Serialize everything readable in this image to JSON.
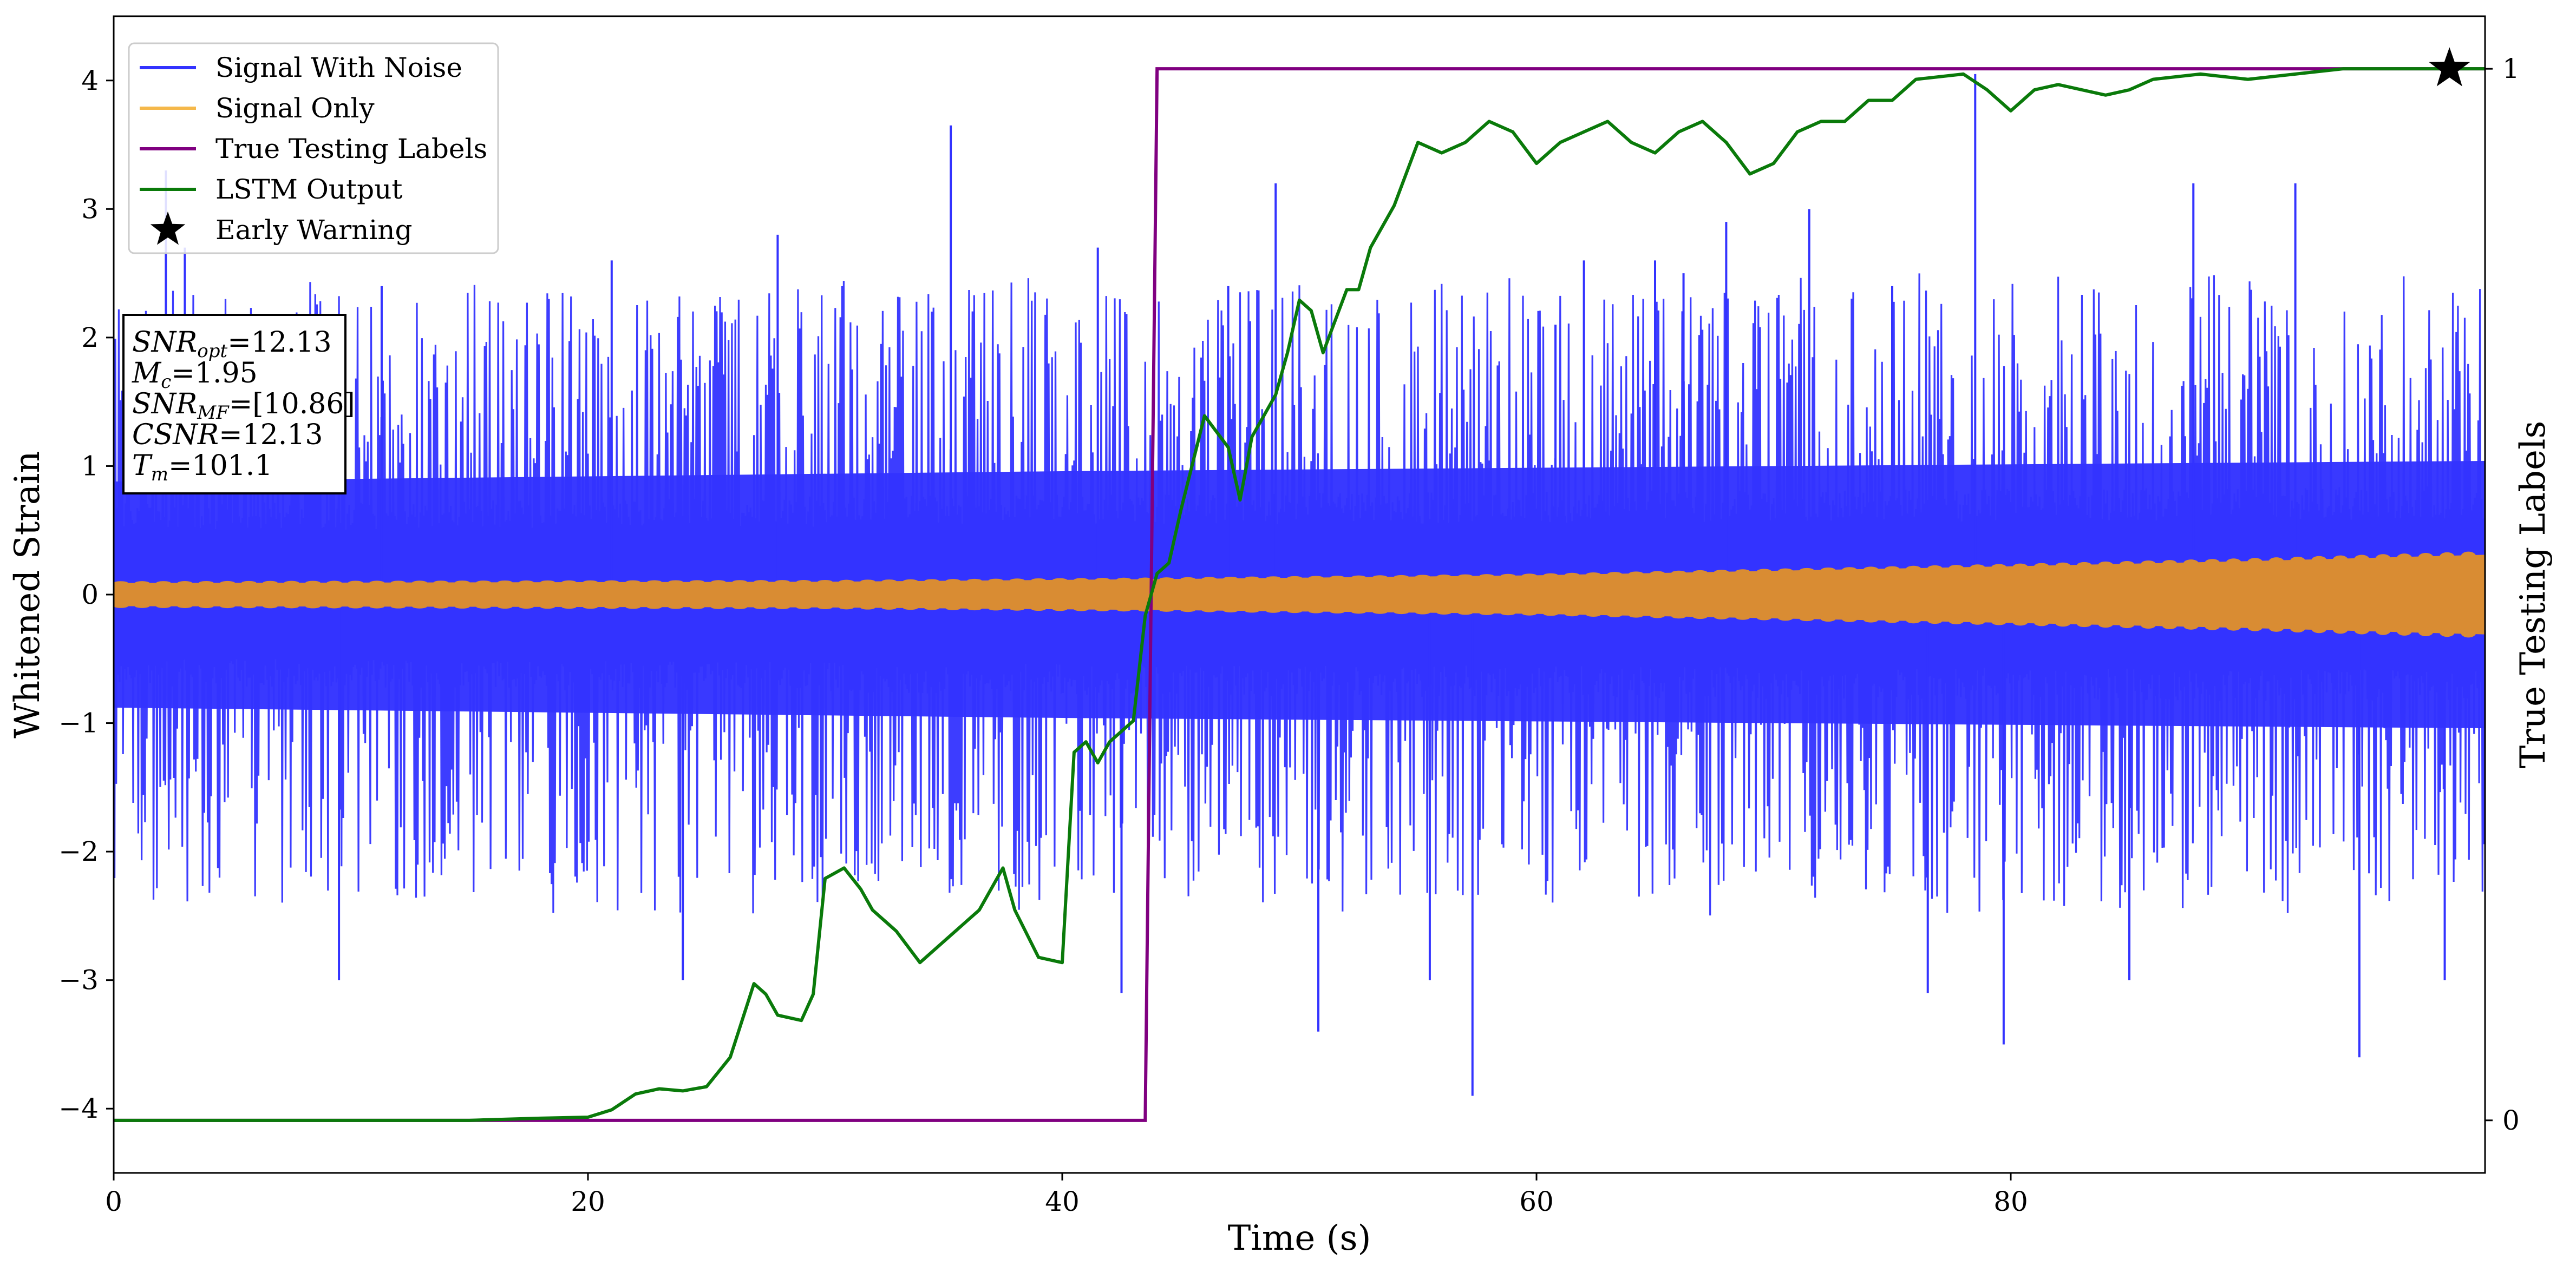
{
  "chart_data": {
    "type": "line",
    "xlabel": "Time (s)",
    "ylabel": "Whitened Strain",
    "y2label": "True Testing Labels",
    "xlim": [
      0,
      100
    ],
    "ylim": [
      -4.5,
      4.5
    ],
    "y2lim": [
      -0.05,
      1.05
    ],
    "x_ticks": [
      0,
      20,
      40,
      60,
      80
    ],
    "y_ticks": [
      -4,
      -3,
      -2,
      -1,
      0,
      1,
      2,
      3,
      4
    ],
    "y2_ticks": [
      0,
      1
    ],
    "grid": false,
    "legend_placement": "top-left",
    "legend": [
      {
        "label": "Signal With Noise",
        "color": "#3333ff",
        "marker": "line"
      },
      {
        "label": "Signal Only",
        "color": "#f5b84a",
        "marker": "line"
      },
      {
        "label": "True Testing Labels",
        "color": "#800080",
        "marker": "line"
      },
      {
        "label": "LSTM Output",
        "color": "#0a7a0a",
        "marker": "line"
      },
      {
        "label": "Early Warning",
        "color": "#000000",
        "marker": "star"
      }
    ],
    "annotation": {
      "lines": [
        {
          "sym": "SNR",
          "sub": "opt",
          "value": "=12.13"
        },
        {
          "sym": "M",
          "sub": "c",
          "value": "=1.95"
        },
        {
          "sym": "SNR",
          "sub": "MF",
          "value": "=[10.86]"
        },
        {
          "sym": "CSNR",
          "sub": "",
          "value": "=12.13"
        },
        {
          "sym": "T",
          "sub": "m",
          "value": "=101.1"
        }
      ]
    },
    "series": [
      {
        "name": "Signal With Noise",
        "color": "#3333ff",
        "axis": "left",
        "kind": "noise",
        "core_amplitude": [
          [
            0,
            0.55
          ],
          [
            40,
            0.6
          ],
          [
            100,
            0.65
          ]
        ],
        "peaks": [
          [
            2.2,
            3.3
          ],
          [
            3.0,
            2.7
          ],
          [
            9.5,
            -3.0
          ],
          [
            11.3,
            2.4
          ],
          [
            21.0,
            2.6
          ],
          [
            24.0,
            -3.0
          ],
          [
            28.0,
            2.8
          ],
          [
            35.3,
            3.65
          ],
          [
            41.5,
            2.7
          ],
          [
            42.5,
            -3.1
          ],
          [
            47.0,
            2.4
          ],
          [
            49.0,
            3.2
          ],
          [
            50.8,
            -3.4
          ],
          [
            55.5,
            -3.0
          ],
          [
            57.3,
            -3.9
          ],
          [
            60.8,
            2.1
          ],
          [
            62.0,
            2.6
          ],
          [
            65.0,
            2.6
          ],
          [
            66.2,
            2.5
          ],
          [
            68.0,
            2.9
          ],
          [
            71.5,
            3.0
          ],
          [
            75.0,
            2.4
          ],
          [
            76.5,
            -3.1
          ],
          [
            78.5,
            4.05
          ],
          [
            79.7,
            -3.5
          ],
          [
            85.0,
            -3.0
          ],
          [
            87.7,
            3.2
          ],
          [
            92.0,
            3.2
          ],
          [
            94.7,
            -3.6
          ],
          [
            98.3,
            -3.0
          ]
        ]
      },
      {
        "name": "Signal Only",
        "color": "#d98c33",
        "axis": "left",
        "kind": "chirp",
        "envelope": [
          [
            0,
            0.09
          ],
          [
            30,
            0.1
          ],
          [
            44,
            0.12
          ],
          [
            60,
            0.15
          ],
          [
            80,
            0.22
          ],
          [
            90,
            0.26
          ],
          [
            100,
            0.31
          ]
        ]
      },
      {
        "name": "True Testing Labels",
        "color": "#800080",
        "axis": "right",
        "points": [
          [
            0,
            0
          ],
          [
            43.5,
            0
          ],
          [
            44.0,
            1
          ],
          [
            100,
            1
          ]
        ]
      },
      {
        "name": "LSTM Output",
        "color": "#0a7a0a",
        "axis": "right",
        "points": [
          [
            0,
            0
          ],
          [
            15,
            0
          ],
          [
            18,
            0.002
          ],
          [
            20,
            0.003
          ],
          [
            21,
            0.01
          ],
          [
            22,
            0.025
          ],
          [
            23,
            0.03
          ],
          [
            24,
            0.028
          ],
          [
            25,
            0.032
          ],
          [
            26,
            0.06
          ],
          [
            27,
            0.13
          ],
          [
            27.5,
            0.12
          ],
          [
            28,
            0.1
          ],
          [
            29,
            0.095
          ],
          [
            29.5,
            0.12
          ],
          [
            30,
            0.23
          ],
          [
            30.8,
            0.24
          ],
          [
            31.5,
            0.22
          ],
          [
            32,
            0.2
          ],
          [
            33,
            0.18
          ],
          [
            34,
            0.15
          ],
          [
            35,
            0.17
          ],
          [
            36,
            0.19
          ],
          [
            36.5,
            0.2
          ],
          [
            37.5,
            0.24
          ],
          [
            38,
            0.2
          ],
          [
            39,
            0.155
          ],
          [
            40,
            0.15
          ],
          [
            40.5,
            0.35
          ],
          [
            41,
            0.36
          ],
          [
            41.5,
            0.34
          ],
          [
            42,
            0.36
          ],
          [
            43,
            0.38
          ],
          [
            43.5,
            0.48
          ],
          [
            44,
            0.52
          ],
          [
            44.5,
            0.53
          ],
          [
            45,
            0.58
          ],
          [
            46,
            0.67
          ],
          [
            47,
            0.64
          ],
          [
            47.5,
            0.59
          ],
          [
            48,
            0.65
          ],
          [
            49,
            0.69
          ],
          [
            49.5,
            0.73
          ],
          [
            50,
            0.78
          ],
          [
            50.5,
            0.77
          ],
          [
            51,
            0.73
          ],
          [
            52,
            0.79
          ],
          [
            52.5,
            0.79
          ],
          [
            53,
            0.83
          ],
          [
            54,
            0.87
          ],
          [
            55,
            0.93
          ],
          [
            56,
            0.92
          ],
          [
            57,
            0.93
          ],
          [
            58,
            0.95
          ],
          [
            59,
            0.94
          ],
          [
            60,
            0.91
          ],
          [
            61,
            0.93
          ],
          [
            62,
            0.94
          ],
          [
            63,
            0.95
          ],
          [
            64,
            0.93
          ],
          [
            65,
            0.92
          ],
          [
            66,
            0.94
          ],
          [
            67,
            0.95
          ],
          [
            68,
            0.93
          ],
          [
            69,
            0.9
          ],
          [
            70,
            0.91
          ],
          [
            71,
            0.94
          ],
          [
            72,
            0.95
          ],
          [
            73,
            0.95
          ],
          [
            74,
            0.97
          ],
          [
            75,
            0.97
          ],
          [
            76,
            0.99
          ],
          [
            78,
            0.995
          ],
          [
            79,
            0.98
          ],
          [
            80,
            0.96
          ],
          [
            81,
            0.98
          ],
          [
            82,
            0.985
          ],
          [
            84,
            0.975
          ],
          [
            85,
            0.98
          ],
          [
            86,
            0.99
          ],
          [
            88,
            0.995
          ],
          [
            90,
            0.99
          ],
          [
            92,
            0.995
          ],
          [
            94,
            1.0
          ],
          [
            96,
            1.0
          ],
          [
            100,
            1.0
          ]
        ]
      }
    ],
    "early_warning": {
      "x": 98.5,
      "y": 1.0,
      "axis": "right",
      "marker": "star"
    }
  }
}
